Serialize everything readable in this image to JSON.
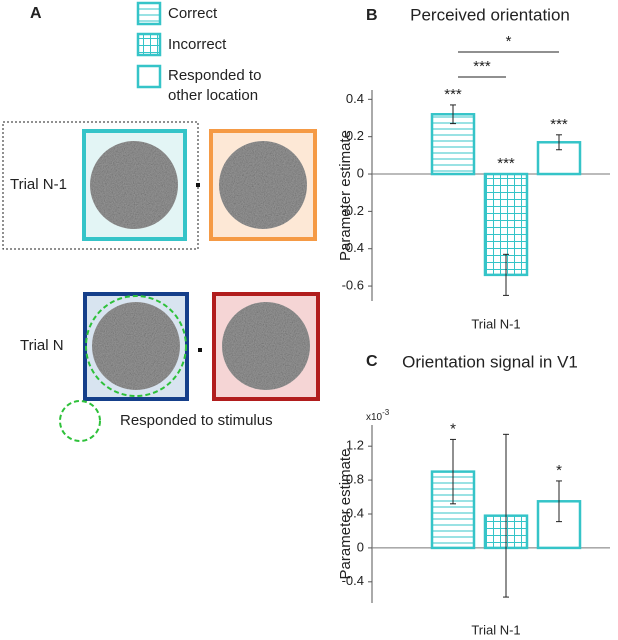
{
  "panel_labels": [
    "A",
    "B",
    "C"
  ],
  "diagram": {
    "legend": [
      "Correct",
      "Incorrect",
      "Responded to other location"
    ],
    "trials": [
      "Trial N-1",
      "Trial N"
    ],
    "note": "Responded to stimulus"
  },
  "chart_data": [
    {
      "type": "bar",
      "title": "Perceived orientation",
      "ylabel": "Parameter estimate",
      "xlabel": "Trial N-1",
      "categories": [
        null,
        null,
        null
      ],
      "values": [
        0.32,
        -0.54,
        0.17
      ],
      "errors": [
        0.05,
        0.11,
        0.04
      ],
      "annotations": [
        "***",
        "***",
        "***"
      ],
      "brackets": [
        {
          "label": "***",
          "from": 0,
          "to": 1
        },
        {
          "label": "*",
          "from": 0,
          "to": 2
        }
      ],
      "color": "#35c4c8",
      "ylim": [
        -0.68,
        0.45
      ],
      "yticks": [
        -0.6,
        -0.4,
        -0.2,
        0,
        0.2,
        0.4
      ]
    },
    {
      "type": "bar",
      "title": "Orientation signal in V1",
      "ylabel": "Parameter estimate",
      "xlabel": "Trial N-1",
      "scale_label": "x10",
      "scale_exponent": "-3",
      "categories": [
        null,
        null,
        null
      ],
      "values": [
        0.9,
        0.38,
        0.55
      ],
      "errors": [
        0.38,
        0.96,
        0.24
      ],
      "annotations": [
        "*",
        null,
        "*"
      ],
      "brackets": [],
      "color": "#35c4c8",
      "ylim": [
        -0.65,
        1.45
      ],
      "yticks": [
        -0.4,
        0,
        0.4,
        0.8,
        1.2
      ]
    }
  ]
}
